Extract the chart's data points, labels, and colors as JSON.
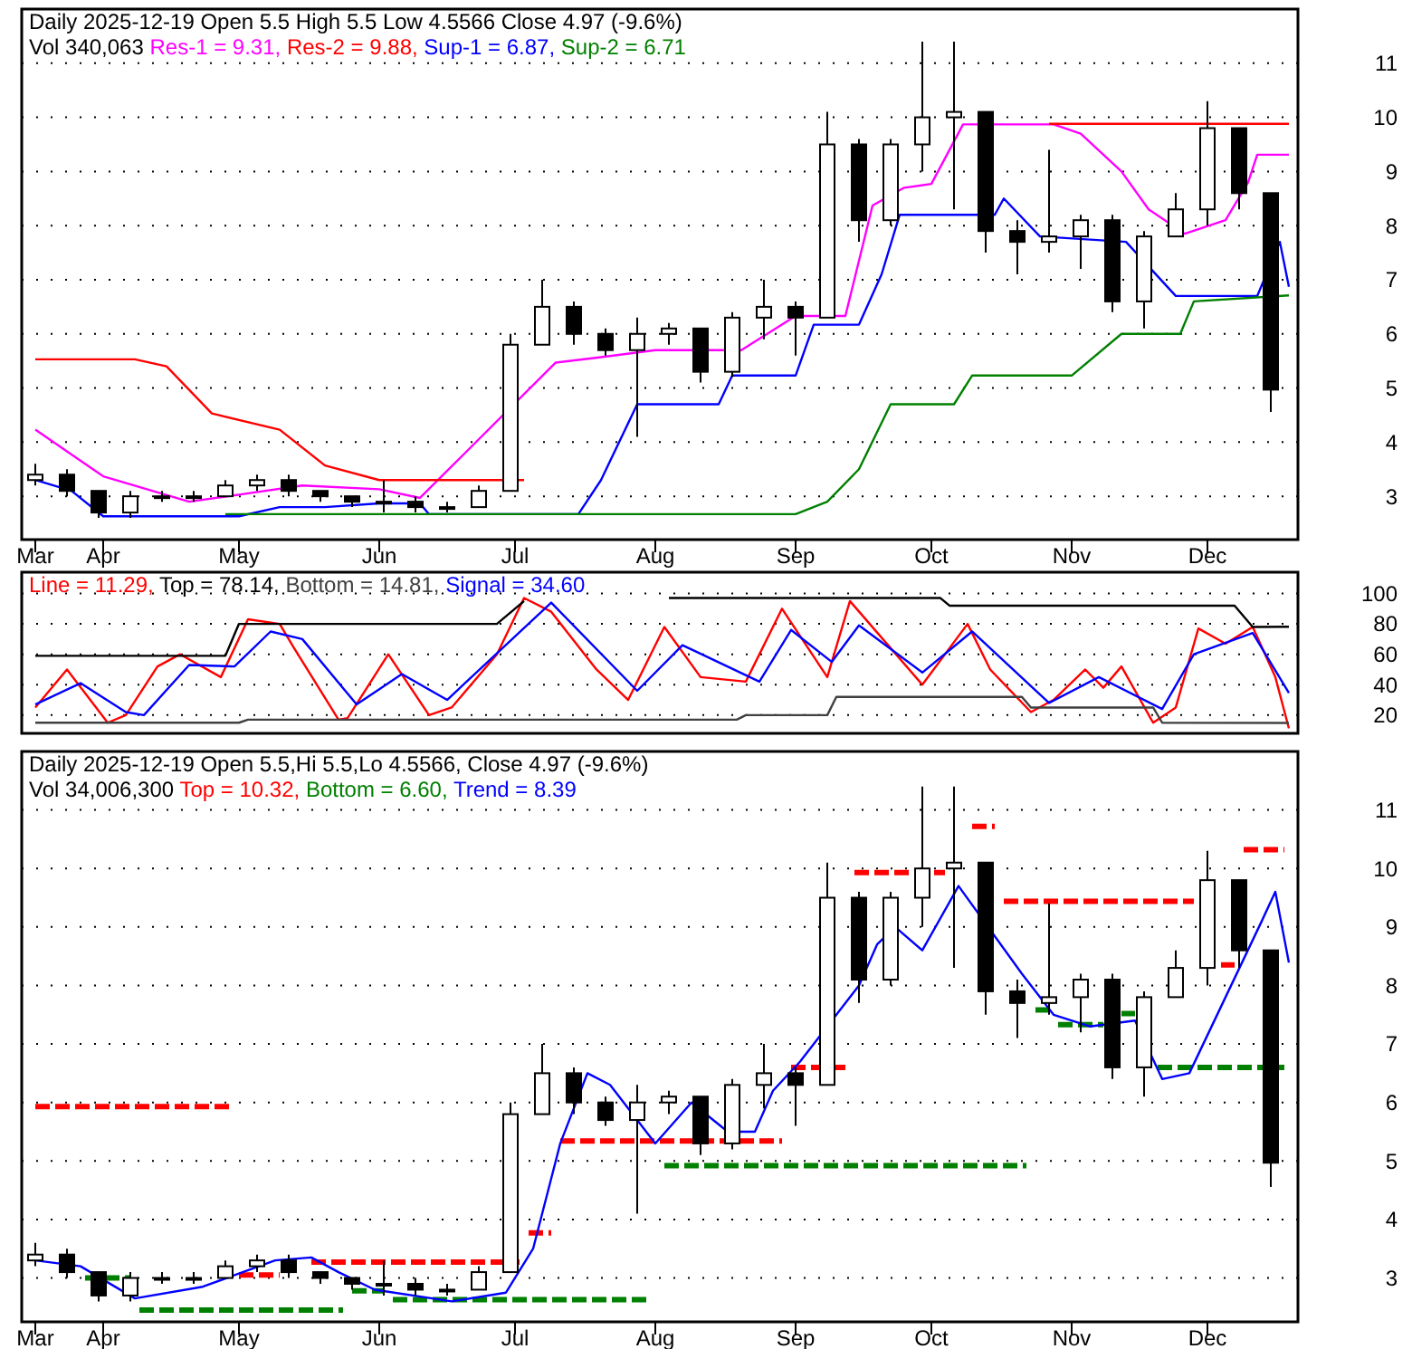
{
  "chart_data": [
    {
      "type": "candlestick",
      "title": "Daily 2025-12-19 Open 5.5  High 5.5  Low 4.5566  Close 4.97 (-9.6%)",
      "subtitle": "Vol 340,063",
      "legend": "top left",
      "grid": "y",
      "xlim": [
        "2025-03-14",
        "2025-12-21"
      ],
      "xticks": [
        {
          "value": "2025-03-17",
          "label": "Mar"
        },
        {
          "value": "2025-04-01",
          "label": "Apr"
        },
        {
          "value": "2025-05-01",
          "label": "May"
        },
        {
          "value": "2025-06-01",
          "label": "Jun"
        },
        {
          "value": "2025-07-01",
          "label": "Jul"
        },
        {
          "value": "2025-08-01",
          "label": "Aug"
        },
        {
          "value": "2025-09-01",
          "label": "Sep"
        },
        {
          "value": "2025-10-01",
          "label": "Oct"
        },
        {
          "value": "2025-11-01",
          "label": "Nov"
        },
        {
          "value": "2025-12-01",
          "label": "Dec"
        }
      ],
      "ylim": [
        2.2,
        12
      ],
      "yticks": [
        3,
        4,
        5,
        6,
        7,
        8,
        9,
        10,
        11
      ],
      "x": [
        "2025-03-17",
        "2025-03-24",
        "2025-03-31",
        "2025-04-07",
        "2025-04-14",
        "2025-04-21",
        "2025-04-28",
        "2025-05-05",
        "2025-05-12",
        "2025-05-19",
        "2025-05-26",
        "2025-06-02",
        "2025-06-09",
        "2025-06-16",
        "2025-06-23",
        "2025-06-30",
        "2025-07-07",
        "2025-07-14",
        "2025-07-21",
        "2025-07-28",
        "2025-08-04",
        "2025-08-11",
        "2025-08-18",
        "2025-08-25",
        "2025-09-01",
        "2025-09-08",
        "2025-09-15",
        "2025-09-22",
        "2025-09-29",
        "2025-10-06",
        "2025-10-13",
        "2025-10-20",
        "2025-10-27",
        "2025-11-03",
        "2025-11-10",
        "2025-11-17",
        "2025-11-24",
        "2025-12-01",
        "2025-12-08",
        "2025-12-15"
      ],
      "ohlc": [
        [
          3.3,
          3.6,
          3.2,
          3.4
        ],
        [
          3.4,
          3.5,
          3.0,
          3.1
        ],
        [
          3.1,
          3.1,
          2.6,
          2.7
        ],
        [
          2.7,
          3.1,
          2.6,
          3.0
        ],
        [
          3.0,
          3.1,
          2.9,
          3.0
        ],
        [
          3.0,
          3.1,
          2.9,
          3.0
        ],
        [
          3.0,
          3.3,
          3.0,
          3.2
        ],
        [
          3.2,
          3.4,
          3.1,
          3.3
        ],
        [
          3.3,
          3.4,
          3.0,
          3.1
        ],
        [
          3.1,
          3.1,
          2.9,
          3.0
        ],
        [
          3.0,
          3.0,
          2.8,
          2.9
        ],
        [
          2.9,
          3.3,
          2.7,
          2.9
        ],
        [
          2.9,
          3.0,
          2.7,
          2.8
        ],
        [
          2.8,
          2.9,
          2.7,
          2.8
        ],
        [
          2.8,
          3.2,
          2.8,
          3.1
        ],
        [
          3.1,
          6.0,
          3.1,
          5.8
        ],
        [
          5.8,
          7.0,
          5.8,
          6.5
        ],
        [
          6.5,
          6.6,
          5.8,
          6.0
        ],
        [
          6.0,
          6.1,
          5.6,
          5.7
        ],
        [
          5.7,
          6.3,
          4.1,
          6.0
        ],
        [
          6.0,
          6.2,
          5.8,
          6.1
        ],
        [
          6.1,
          6.1,
          5.1,
          5.3
        ],
        [
          5.3,
          6.4,
          5.2,
          6.3
        ],
        [
          6.3,
          7.0,
          5.9,
          6.5
        ],
        [
          6.5,
          6.6,
          5.6,
          6.3
        ],
        [
          6.3,
          10.1,
          6.3,
          9.5
        ],
        [
          9.5,
          9.6,
          7.7,
          8.1
        ],
        [
          8.1,
          9.6,
          8.0,
          9.5
        ],
        [
          9.5,
          11.4,
          9.0,
          10.0
        ],
        [
          10.0,
          11.4,
          8.3,
          10.1
        ],
        [
          10.1,
          10.1,
          7.5,
          7.9
        ],
        [
          7.9,
          8.1,
          7.1,
          7.7
        ],
        [
          7.7,
          9.4,
          7.5,
          7.8
        ],
        [
          7.8,
          8.2,
          7.2,
          8.1
        ],
        [
          8.1,
          8.2,
          6.4,
          6.6
        ],
        [
          6.6,
          7.9,
          6.1,
          7.8
        ],
        [
          7.8,
          8.6,
          7.8,
          8.3
        ],
        [
          8.3,
          10.3,
          8.0,
          9.8
        ],
        [
          9.8,
          9.8,
          8.3,
          8.6
        ],
        [
          8.6,
          8.6,
          4.5566,
          4.97
        ]
      ],
      "series": [
        {
          "type": "line",
          "name": "Res-1 = 9.31,",
          "color": "#ff00ff",
          "line_style": "solid",
          "x": [
            "2025-03-17",
            "2025-04-01",
            "2025-04-20",
            "2025-05-01",
            "2025-05-15",
            "2025-06-01",
            "2025-06-10",
            "2025-07-10",
            "2025-07-20",
            "2025-08-01",
            "2025-08-20",
            "2025-09-01",
            "2025-09-12",
            "2025-09-18",
            "2025-09-25",
            "2025-10-01",
            "2025-10-08",
            "2025-10-28",
            "2025-11-03",
            "2025-11-12",
            "2025-11-18",
            "2025-11-26",
            "2025-12-05",
            "2025-12-10",
            "2025-12-12",
            "2025-12-19"
          ],
          "values": [
            4.23,
            3.37,
            2.9,
            3.03,
            3.2,
            3.13,
            2.97,
            5.47,
            5.57,
            5.7,
            5.7,
            6.33,
            6.33,
            8.37,
            8.7,
            8.77,
            9.87,
            9.87,
            9.7,
            9.0,
            8.3,
            7.85,
            8.1,
            8.8,
            9.31,
            9.31
          ]
        },
        {
          "type": "line",
          "name": "Res-2 = 9.88,",
          "color": "#ff0000",
          "line_style": "solid",
          "x": [
            "2025-03-17",
            "2025-04-08",
            "2025-04-15",
            "2025-04-25",
            "2025-05-10",
            "2025-05-20",
            "2025-06-01",
            "2025-07-03",
            "2025-07-05",
            "2025-10-27",
            "2025-12-19"
          ],
          "values": [
            5.53,
            5.53,
            5.4,
            4.53,
            4.23,
            3.57,
            3.3,
            3.3,
            null,
            9.88,
            9.88
          ]
        },
        {
          "type": "line",
          "name": "Sup-1 = 6.87,",
          "color": "#0000ff",
          "line_style": "solid",
          "x": [
            "2025-03-17",
            "2025-03-25",
            "2025-04-01",
            "2025-05-01",
            "2025-05-10",
            "2025-05-20",
            "2025-06-01",
            "2025-06-10",
            "2025-06-12",
            "2025-07-15",
            "2025-07-20",
            "2025-07-28",
            "2025-08-15",
            "2025-08-18",
            "2025-09-01",
            "2025-09-05",
            "2025-09-15",
            "2025-09-20",
            "2025-09-24",
            "2025-10-15",
            "2025-10-17",
            "2025-10-25",
            "2025-11-13",
            "2025-11-24",
            "2025-12-12",
            "2025-12-17",
            "2025-12-19"
          ],
          "values": [
            3.3,
            3.1,
            2.63,
            2.63,
            2.8,
            2.8,
            2.87,
            2.87,
            2.67,
            2.67,
            3.3,
            4.7,
            4.7,
            5.23,
            5.23,
            6.17,
            6.17,
            7.1,
            8.2,
            8.2,
            8.5,
            7.8,
            7.7,
            6.7,
            6.7,
            7.7,
            6.87
          ]
        },
        {
          "type": "line",
          "name": "Sup-2 = 6.71",
          "color": "#008000",
          "line_style": "solid",
          "x": [
            "2025-04-28",
            "2025-09-01",
            "2025-09-08",
            "2025-09-15",
            "2025-09-22",
            "2025-10-06",
            "2025-10-10",
            "2025-11-01",
            "2025-11-12",
            "2025-11-25",
            "2025-11-28",
            "2025-12-19"
          ],
          "values": [
            2.67,
            2.67,
            2.9,
            3.5,
            4.7,
            4.7,
            5.23,
            5.23,
            6.0,
            6.0,
            6.6,
            6.71
          ]
        }
      ]
    },
    {
      "type": "line",
      "legend": "top left",
      "grid": "y",
      "tick_labels": "y",
      "xlim": [
        "2025-03-14",
        "2025-12-21"
      ],
      "ylim": [
        8,
        114
      ],
      "yticks": [
        20,
        40,
        60,
        80,
        100
      ],
      "series": [
        {
          "name": "Line = 11.29,",
          "color": "#ff0000",
          "x": [
            "2025-03-17",
            "2025-03-24",
            "2025-04-02",
            "2025-04-06",
            "2025-04-13",
            "2025-04-18",
            "2025-04-27",
            "2025-05-03",
            "2025-05-10",
            "2025-05-13",
            "2025-05-23",
            "2025-05-25",
            "2025-06-03",
            "2025-06-12",
            "2025-06-17",
            "2025-06-27",
            "2025-07-03",
            "2025-07-09",
            "2025-07-19",
            "2025-07-26",
            "2025-08-03",
            "2025-08-11",
            "2025-08-21",
            "2025-08-29",
            "2025-09-08",
            "2025-09-13",
            "2025-09-29",
            "2025-10-09",
            "2025-10-14",
            "2025-10-23",
            "2025-10-28",
            "2025-11-04",
            "2025-11-08",
            "2025-11-12",
            "2025-11-19",
            "2025-11-24",
            "2025-11-29",
            "2025-12-05",
            "2025-12-11",
            "2025-12-16",
            "2025-12-19"
          ],
          "values": [
            25,
            50,
            15,
            20,
            52,
            60,
            45,
            83,
            80,
            65,
            17,
            18,
            60,
            20,
            25,
            60,
            97,
            88,
            50,
            30,
            78,
            45,
            42,
            90,
            45,
            95,
            40,
            80,
            50,
            22,
            30,
            50,
            38,
            52,
            15,
            25,
            77,
            67,
            78,
            45,
            11.29
          ]
        },
        {
          "name": "Top = 78.14,",
          "color": "#000000",
          "x": [
            "2025-03-17",
            "2025-04-28",
            "2025-05-01",
            "2025-06-27",
            "2025-07-03",
            "2025-07-20",
            "2025-08-04",
            "2025-10-03",
            "2025-10-05",
            "2025-12-07",
            "2025-12-11",
            "2025-12-19"
          ],
          "values": [
            59,
            59,
            80,
            80,
            95,
            null,
            97,
            97,
            92,
            92,
            78,
            78.14
          ]
        },
        {
          "name": "Bottom = 14.81,",
          "color": "#404040",
          "x": [
            "2025-03-17",
            "2025-05-01",
            "2025-05-03",
            "2025-08-19",
            "2025-08-21",
            "2025-09-08",
            "2025-09-10",
            "2025-10-21",
            "2025-10-23",
            "2025-11-19",
            "2025-11-21",
            "2025-12-19"
          ],
          "values": [
            15,
            15,
            17,
            17,
            20,
            20,
            32,
            32,
            25,
            25,
            15,
            14.81
          ]
        },
        {
          "name": "Signal = 34.60",
          "color": "#0000ff",
          "x": [
            "2025-03-17",
            "2025-03-27",
            "2025-04-06",
            "2025-04-10",
            "2025-04-20",
            "2025-04-30",
            "2025-05-08",
            "2025-05-15",
            "2025-05-27",
            "2025-06-06",
            "2025-06-16",
            "2025-07-09",
            "2025-07-28",
            "2025-08-07",
            "2025-08-24",
            "2025-08-31",
            "2025-09-09",
            "2025-09-15",
            "2025-09-29",
            "2025-10-10",
            "2025-10-27",
            "2025-11-07",
            "2025-11-21",
            "2025-11-28",
            "2025-12-11",
            "2025-12-19"
          ],
          "values": [
            27,
            41,
            22,
            20,
            53,
            52,
            75,
            70,
            27,
            47,
            30,
            94,
            36,
            66,
            42,
            76,
            55,
            79,
            48,
            75,
            28,
            45,
            24,
            60,
            74,
            34.6
          ]
        }
      ]
    },
    {
      "type": "candlestick",
      "title": "Daily 2025-12-19 Open 5.5,Hi 5.5,Lo 4.5566, Close 4.97 (-9.6%)",
      "subtitle": "Vol 34,006,300",
      "legend": "top left",
      "grid": "y",
      "xlim": [
        "2025-03-14",
        "2025-12-21"
      ],
      "xticks": [
        {
          "value": "2025-03-17",
          "label": "Mar"
        },
        {
          "value": "2025-04-01",
          "label": "Apr"
        },
        {
          "value": "2025-05-01",
          "label": "May"
        },
        {
          "value": "2025-06-01",
          "label": "Jun"
        },
        {
          "value": "2025-07-01",
          "label": "Jul"
        },
        {
          "value": "2025-08-01",
          "label": "Aug"
        },
        {
          "value": "2025-09-01",
          "label": "Sep"
        },
        {
          "value": "2025-10-01",
          "label": "Oct"
        },
        {
          "value": "2025-11-01",
          "label": "Nov"
        },
        {
          "value": "2025-12-01",
          "label": "Dec"
        }
      ],
      "ylim": [
        2.25,
        12
      ],
      "yticks": [
        3,
        4,
        5,
        6,
        7,
        8,
        9,
        10,
        11
      ],
      "x": [
        "2025-03-17",
        "2025-03-24",
        "2025-03-31",
        "2025-04-07",
        "2025-04-14",
        "2025-04-21",
        "2025-04-28",
        "2025-05-05",
        "2025-05-12",
        "2025-05-19",
        "2025-05-26",
        "2025-06-02",
        "2025-06-09",
        "2025-06-16",
        "2025-06-23",
        "2025-06-30",
        "2025-07-07",
        "2025-07-14",
        "2025-07-21",
        "2025-07-28",
        "2025-08-04",
        "2025-08-11",
        "2025-08-18",
        "2025-08-25",
        "2025-09-01",
        "2025-09-08",
        "2025-09-15",
        "2025-09-22",
        "2025-09-29",
        "2025-10-06",
        "2025-10-13",
        "2025-10-20",
        "2025-10-27",
        "2025-11-03",
        "2025-11-10",
        "2025-11-17",
        "2025-11-24",
        "2025-12-01",
        "2025-12-08",
        "2025-12-15"
      ],
      "ohlc": [
        [
          3.3,
          3.6,
          3.2,
          3.4
        ],
        [
          3.4,
          3.5,
          3.0,
          3.1
        ],
        [
          3.1,
          3.1,
          2.6,
          2.7
        ],
        [
          2.7,
          3.1,
          2.6,
          3.0
        ],
        [
          3.0,
          3.1,
          2.9,
          3.0
        ],
        [
          3.0,
          3.1,
          2.9,
          3.0
        ],
        [
          3.0,
          3.3,
          3.0,
          3.2
        ],
        [
          3.2,
          3.4,
          3.1,
          3.3
        ],
        [
          3.3,
          3.4,
          3.0,
          3.1
        ],
        [
          3.1,
          3.1,
          2.9,
          3.0
        ],
        [
          3.0,
          3.0,
          2.8,
          2.9
        ],
        [
          2.9,
          3.3,
          2.7,
          2.9
        ],
        [
          2.9,
          3.0,
          2.7,
          2.8
        ],
        [
          2.8,
          2.9,
          2.7,
          2.8
        ],
        [
          2.8,
          3.2,
          2.8,
          3.1
        ],
        [
          3.1,
          6.0,
          3.1,
          5.8
        ],
        [
          5.8,
          7.0,
          5.8,
          6.5
        ],
        [
          6.5,
          6.6,
          5.8,
          6.0
        ],
        [
          6.0,
          6.1,
          5.6,
          5.7
        ],
        [
          5.7,
          6.3,
          4.1,
          6.0
        ],
        [
          6.0,
          6.2,
          5.8,
          6.1
        ],
        [
          6.1,
          6.1,
          5.1,
          5.3
        ],
        [
          5.3,
          6.4,
          5.2,
          6.3
        ],
        [
          6.3,
          7.0,
          5.9,
          6.5
        ],
        [
          6.5,
          6.6,
          5.6,
          6.3
        ],
        [
          6.3,
          10.1,
          6.3,
          9.5
        ],
        [
          9.5,
          9.6,
          7.7,
          8.1
        ],
        [
          8.1,
          9.6,
          8.0,
          9.5
        ],
        [
          9.5,
          11.4,
          9.0,
          10.0
        ],
        [
          10.0,
          11.4,
          8.3,
          10.1
        ],
        [
          10.1,
          10.1,
          7.5,
          7.9
        ],
        [
          7.9,
          8.1,
          7.1,
          7.7
        ],
        [
          7.7,
          9.4,
          7.5,
          7.8
        ],
        [
          7.8,
          8.2,
          7.2,
          8.1
        ],
        [
          8.1,
          8.2,
          6.4,
          6.6
        ],
        [
          6.6,
          7.9,
          6.1,
          7.8
        ],
        [
          7.8,
          8.6,
          7.8,
          8.3
        ],
        [
          8.3,
          10.3,
          8.0,
          9.8
        ],
        [
          9.8,
          9.8,
          8.3,
          8.6
        ],
        [
          8.6,
          8.6,
          4.5566,
          4.97
        ]
      ],
      "series": [
        {
          "type": "line",
          "name": "Top = 10.32,",
          "color": "#ff0000",
          "line_style": "dashed",
          "x": [
            "2025-03-17",
            "2025-04-29",
            "2025-04-30",
            "2025-05-01",
            "2025-05-10",
            "2025-05-14",
            "2025-05-17",
            "2025-07-02",
            "2025-07-03",
            "2025-07-04",
            "2025-07-09",
            "2025-07-10",
            "2025-07-11",
            "2025-08-29",
            "2025-08-30",
            "2025-08-31",
            "2025-09-12",
            "2025-09-13",
            "2025-09-14",
            "2025-10-04",
            "2025-10-07",
            "2025-10-10",
            "2025-10-15",
            "2025-10-16",
            "2025-10-17",
            "2025-11-28",
            "2025-12-03",
            "2025-12-04",
            "2025-12-07",
            "2025-12-08",
            "2025-12-09",
            "2025-12-18"
          ],
          "values": [
            5.93,
            5.93,
            null,
            3.05,
            3.05,
            null,
            3.27,
            3.27,
            null,
            3.77,
            3.77,
            null,
            5.34,
            5.34,
            null,
            6.6,
            6.6,
            null,
            9.93,
            9.93,
            null,
            10.72,
            10.72,
            null,
            9.44,
            9.44,
            null,
            8.35,
            8.35,
            null,
            10.32,
            10.32
          ]
        },
        {
          "type": "line",
          "name": "Bottom = 6.60,",
          "color": "#008000",
          "line_style": "dashed",
          "x": [
            "2025-03-28",
            "2025-04-07",
            "2025-04-08",
            "2025-04-09",
            "2025-05-24",
            "2025-05-25",
            "2025-05-26",
            "2025-06-02",
            "2025-06-03",
            "2025-06-04",
            "2025-07-31",
            "2025-08-01",
            "2025-08-03",
            "2025-10-22",
            "2025-10-23",
            "2025-10-24",
            "2025-10-27",
            "2025-10-28",
            "2025-10-29",
            "2025-11-08",
            "2025-11-09",
            "2025-11-12",
            "2025-11-15",
            "2025-11-19",
            "2025-11-20",
            "2025-12-18"
          ],
          "values": [
            3.0,
            3.0,
            null,
            2.45,
            2.45,
            null,
            2.78,
            2.78,
            null,
            2.63,
            2.63,
            null,
            4.92,
            4.92,
            null,
            7.58,
            7.58,
            null,
            7.33,
            7.33,
            null,
            7.52,
            7.52,
            null,
            6.6,
            6.6
          ]
        },
        {
          "type": "line",
          "name": "Trend = 8.39",
          "color": "#0000ff",
          "line_style": "solid",
          "x": [
            "2025-03-17",
            "2025-03-27",
            "2025-04-08",
            "2025-04-23",
            "2025-05-09",
            "2025-05-17",
            "2025-05-23",
            "2025-05-31",
            "2025-06-17",
            "2025-06-29",
            "2025-07-05",
            "2025-07-11",
            "2025-07-17",
            "2025-07-22",
            "2025-08-01",
            "2025-08-09",
            "2025-08-17",
            "2025-08-23",
            "2025-08-27",
            "2025-09-02",
            "2025-09-15",
            "2025-09-19",
            "2025-09-23",
            "2025-09-29",
            "2025-10-07",
            "2025-10-21",
            "2025-10-28",
            "2025-11-05",
            "2025-11-15",
            "2025-11-21",
            "2025-11-27",
            "2025-12-05",
            "2025-12-13",
            "2025-12-16",
            "2025-12-19"
          ],
          "values": [
            3.3,
            3.2,
            2.65,
            2.85,
            3.3,
            3.35,
            3.1,
            2.8,
            2.6,
            2.75,
            3.5,
            5.3,
            6.5,
            6.3,
            5.3,
            6.0,
            5.5,
            5.5,
            6.2,
            6.7,
            8.0,
            8.7,
            9.0,
            8.6,
            9.7,
            8.2,
            7.5,
            7.3,
            7.4,
            6.4,
            6.5,
            7.8,
            9.1,
            9.6,
            8.39
          ]
        }
      ]
    }
  ]
}
